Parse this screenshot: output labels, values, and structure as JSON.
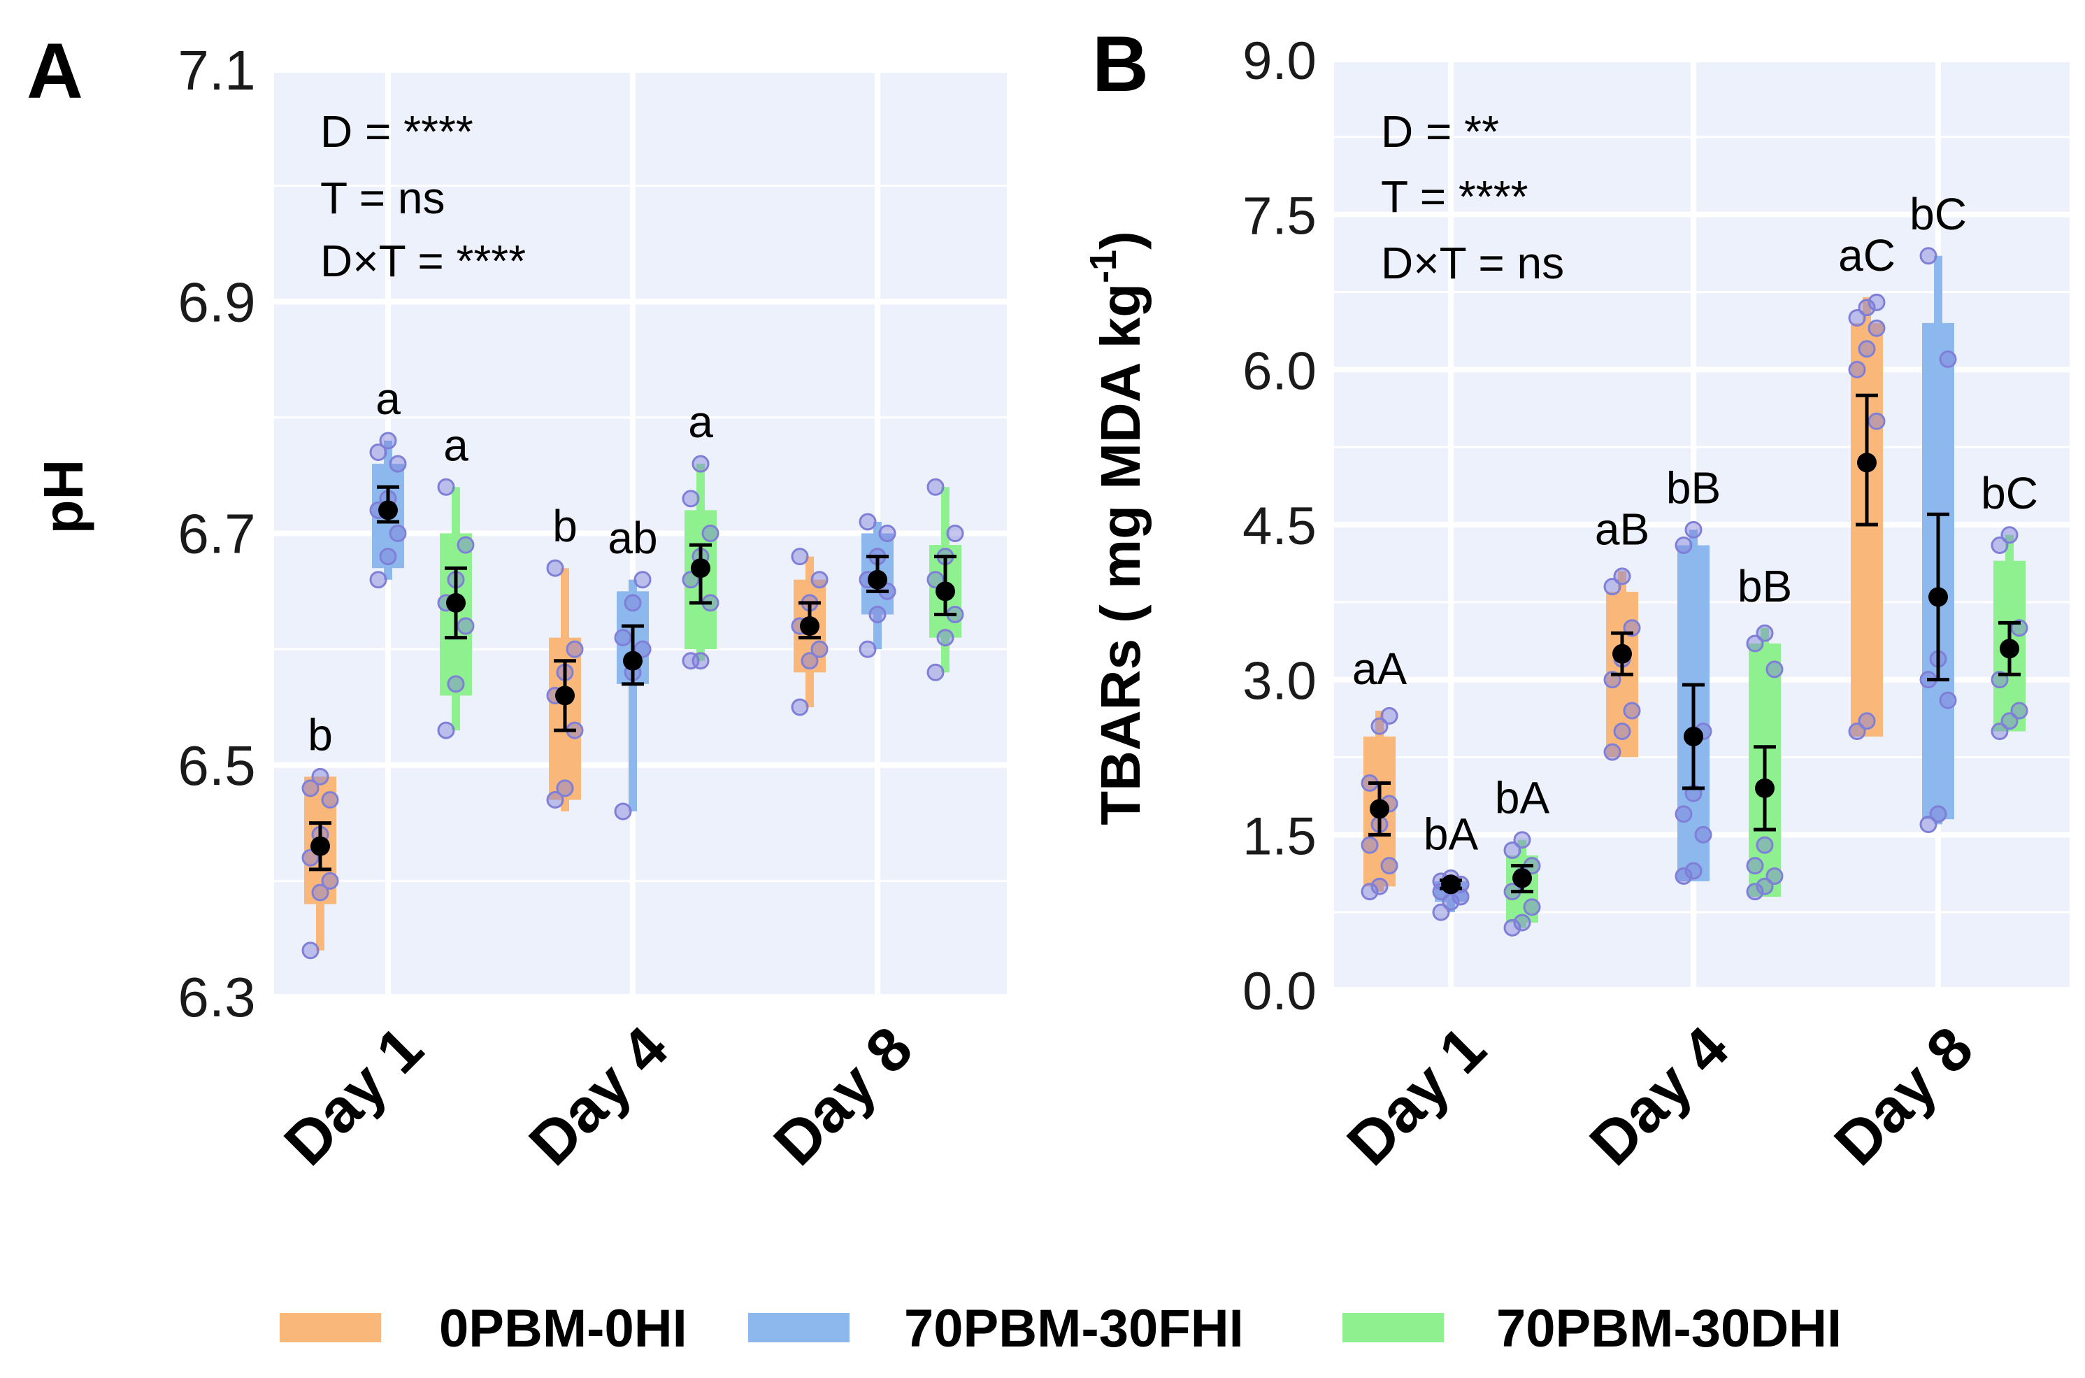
{
  "legend": [
    {
      "label": "0PBM-0HI",
      "color": "#f9b77a"
    },
    {
      "label": "70PBM-30FHI",
      "color": "#8db8ee"
    },
    {
      "label": "70PBM-30DHI",
      "color": "#8ef08e"
    }
  ],
  "colors": {
    "panel_bg": "#edf1fb",
    "grid": "#ffffff",
    "point_edge": "#7f7fd8",
    "mean": "#000000"
  },
  "chart_data": [
    {
      "panel": "A",
      "type": "box",
      "ylabel": "pH",
      "ylim": [
        6.3,
        7.1
      ],
      "yticks": [
        "6.3",
        "6.5",
        "6.7",
        "6.9",
        "7.1"
      ],
      "categories": [
        "Day 1",
        "Day 4",
        "Day 8"
      ],
      "stats_text": [
        "D = ****",
        "T = ns",
        "D×T = ****"
      ],
      "groups": [
        {
          "category": "Day 1",
          "series": "0PBM-0HI",
          "q1": 6.38,
          "q3": 6.49,
          "min": 6.34,
          "max": 6.49,
          "mean": 6.43,
          "err": [
            6.41,
            6.45
          ],
          "points": [
            6.34,
            6.39,
            6.4,
            6.42,
            6.44,
            6.47,
            6.48,
            6.49
          ],
          "letter": "b"
        },
        {
          "category": "Day 1",
          "series": "70PBM-30FHI",
          "q1": 6.67,
          "q3": 6.76,
          "min": 6.66,
          "max": 6.78,
          "mean": 6.72,
          "err": [
            6.71,
            6.74
          ],
          "points": [
            6.66,
            6.68,
            6.7,
            6.72,
            6.73,
            6.76,
            6.77,
            6.78
          ],
          "letter": "a"
        },
        {
          "category": "Day 1",
          "series": "70PBM-30DHI",
          "q1": 6.56,
          "q3": 6.7,
          "min": 6.53,
          "max": 6.74,
          "mean": 6.64,
          "err": [
            6.61,
            6.67
          ],
          "points": [
            6.53,
            6.57,
            6.62,
            6.64,
            6.66,
            6.69,
            6.74
          ],
          "letter": "a"
        },
        {
          "category": "Day 4",
          "series": "0PBM-0HI",
          "q1": 6.47,
          "q3": 6.61,
          "min": 6.46,
          "max": 6.67,
          "mean": 6.56,
          "err": [
            6.53,
            6.59
          ],
          "points": [
            6.47,
            6.48,
            6.53,
            6.56,
            6.58,
            6.6,
            6.67
          ],
          "letter": "b"
        },
        {
          "category": "Day 4",
          "series": "70PBM-30FHI",
          "q1": 6.57,
          "q3": 6.65,
          "min": 6.46,
          "max": 6.66,
          "mean": 6.59,
          "err": [
            6.57,
            6.62
          ],
          "points": [
            6.46,
            6.58,
            6.6,
            6.61,
            6.64,
            6.66
          ],
          "letter": "ab"
        },
        {
          "category": "Day 4",
          "series": "70PBM-30DHI",
          "q1": 6.6,
          "q3": 6.72,
          "min": 6.59,
          "max": 6.76,
          "mean": 6.67,
          "err": [
            6.64,
            6.69
          ],
          "points": [
            6.59,
            6.59,
            6.64,
            6.66,
            6.68,
            6.7,
            6.73,
            6.76
          ],
          "letter": "a"
        },
        {
          "category": "Day 8",
          "series": "0PBM-0HI",
          "q1": 6.58,
          "q3": 6.66,
          "min": 6.55,
          "max": 6.68,
          "mean": 6.62,
          "err": [
            6.61,
            6.64
          ],
          "points": [
            6.55,
            6.59,
            6.6,
            6.62,
            6.64,
            6.66,
            6.68
          ],
          "letter": ""
        },
        {
          "category": "Day 8",
          "series": "70PBM-30FHI",
          "q1": 6.63,
          "q3": 6.7,
          "min": 6.6,
          "max": 6.71,
          "mean": 6.66,
          "err": [
            6.65,
            6.68
          ],
          "points": [
            6.6,
            6.63,
            6.65,
            6.66,
            6.68,
            6.7,
            6.71
          ],
          "letter": ""
        },
        {
          "category": "Day 8",
          "series": "70PBM-30DHI",
          "q1": 6.61,
          "q3": 6.69,
          "min": 6.58,
          "max": 6.74,
          "mean": 6.65,
          "err": [
            6.63,
            6.68
          ],
          "points": [
            6.58,
            6.61,
            6.63,
            6.66,
            6.68,
            6.7,
            6.74
          ],
          "letter": ""
        }
      ]
    },
    {
      "panel": "B",
      "type": "box",
      "ylabel": "TBARs ( mg MDA kg",
      "ylabel_sup": "-1",
      "ylabel_end": ")",
      "ylim": [
        0.0,
        9.0
      ],
      "yticks": [
        "0.0",
        "1.5",
        "3.0",
        "4.5",
        "6.0",
        "7.5",
        "9.0"
      ],
      "categories": [
        "Day 1",
        "Day 4",
        "Day 8"
      ],
      "stats_text": [
        "D = **",
        "T = ****",
        "D×T = ns"
      ],
      "groups": [
        {
          "category": "Day 1",
          "series": "0PBM-0HI",
          "q1": 1.0,
          "q3": 2.45,
          "min": 0.95,
          "max": 2.7,
          "mean": 1.75,
          "err": [
            1.5,
            2.0
          ],
          "points": [
            0.95,
            1.0,
            1.2,
            1.4,
            1.6,
            1.8,
            2.0,
            2.55,
            2.65
          ],
          "letter": "aA"
        },
        {
          "category": "Day 1",
          "series": "70PBM-30FHI",
          "q1": 0.85,
          "q3": 1.05,
          "min": 0.75,
          "max": 1.1,
          "mean": 1.02,
          "err": [
            0.98,
            1.06
          ],
          "points": [
            0.75,
            0.85,
            0.9,
            0.95,
            1.0,
            1.02,
            1.05,
            1.08
          ],
          "letter": "bA"
        },
        {
          "category": "Day 1",
          "series": "70PBM-30DHI",
          "q1": 0.65,
          "q3": 1.3,
          "min": 0.6,
          "max": 1.45,
          "mean": 1.08,
          "err": [
            0.95,
            1.2
          ],
          "points": [
            0.6,
            0.65,
            0.8,
            0.95,
            1.1,
            1.2,
            1.35,
            1.45
          ],
          "letter": "bA"
        },
        {
          "category": "Day 4",
          "series": "0PBM-0HI",
          "q1": 2.25,
          "q3": 3.85,
          "min": 2.25,
          "max": 4.05,
          "mean": 3.25,
          "err": [
            3.05,
            3.45
          ],
          "points": [
            2.3,
            2.5,
            2.7,
            3.0,
            3.2,
            3.5,
            3.9,
            4.0
          ],
          "letter": "aB"
        },
        {
          "category": "Day 4",
          "series": "70PBM-30FHI",
          "q1": 1.05,
          "q3": 4.3,
          "min": 1.05,
          "max": 4.45,
          "mean": 2.45,
          "err": [
            1.95,
            2.95
          ],
          "points": [
            1.1,
            1.15,
            1.5,
            1.7,
            1.9,
            2.5,
            4.3,
            4.45
          ],
          "letter": "bB"
        },
        {
          "category": "Day 4",
          "series": "70PBM-30DHI",
          "q1": 0.9,
          "q3": 3.35,
          "min": 0.9,
          "max": 3.5,
          "mean": 1.95,
          "err": [
            1.55,
            2.35
          ],
          "points": [
            0.95,
            1.0,
            1.1,
            1.2,
            1.4,
            3.1,
            3.35,
            3.45
          ],
          "letter": "bB"
        },
        {
          "category": "Day 8",
          "series": "0PBM-0HI",
          "q1": 2.45,
          "q3": 6.45,
          "min": 2.45,
          "max": 6.7,
          "mean": 5.1,
          "err": [
            4.5,
            5.75
          ],
          "points": [
            2.5,
            2.6,
            5.5,
            6.0,
            6.2,
            6.4,
            6.5,
            6.6,
            6.65
          ],
          "letter": "aC"
        },
        {
          "category": "Day 8",
          "series": "70PBM-30FHI",
          "q1": 1.65,
          "q3": 6.45,
          "min": 1.6,
          "max": 7.1,
          "mean": 3.8,
          "err": [
            3.0,
            4.6
          ],
          "points": [
            1.6,
            1.7,
            2.8,
            3.0,
            3.2,
            6.1,
            7.1
          ],
          "letter": "bC"
        },
        {
          "category": "Day 8",
          "series": "70PBM-30DHI",
          "q1": 2.5,
          "q3": 4.15,
          "min": 2.5,
          "max": 4.4,
          "mean": 3.3,
          "err": [
            3.05,
            3.55
          ],
          "points": [
            2.5,
            2.6,
            2.7,
            3.0,
            3.3,
            3.5,
            4.3,
            4.4
          ],
          "letter": "bC"
        }
      ]
    }
  ]
}
